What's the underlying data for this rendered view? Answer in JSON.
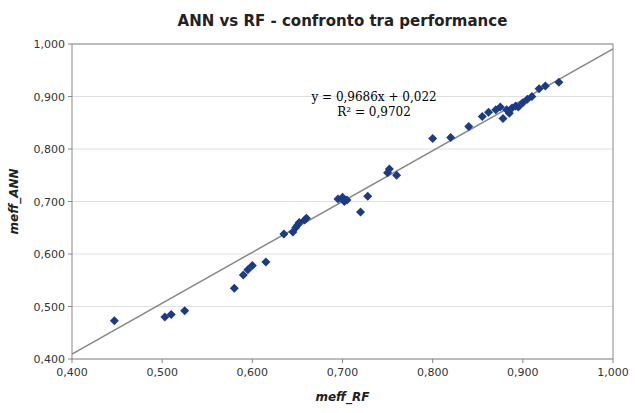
{
  "chart_data": {
    "type": "scatter",
    "title": "ANN vs RF - confronto tra performance",
    "x_label": "meff_RF",
    "y_label": "meff_ANN",
    "xlim": [
      0.4,
      1.0
    ],
    "ylim": [
      0.4,
      1.0
    ],
    "xticks": [
      {
        "value": 0.4,
        "label": "0,400"
      },
      {
        "value": 0.5,
        "label": "0,500"
      },
      {
        "value": 0.6,
        "label": "0,600"
      },
      {
        "value": 0.7,
        "label": "0,700"
      },
      {
        "value": 0.8,
        "label": "0,800"
      },
      {
        "value": 0.9,
        "label": "0,900"
      },
      {
        "value": 1.0,
        "label": "1,000"
      }
    ],
    "yticks": [
      {
        "value": 0.4,
        "label": "0,400"
      },
      {
        "value": 0.5,
        "label": "0,500"
      },
      {
        "value": 0.6,
        "label": "0,600"
      },
      {
        "value": 0.7,
        "label": "0,700"
      },
      {
        "value": 0.8,
        "label": "0,800"
      },
      {
        "value": 0.9,
        "label": "0,900"
      },
      {
        "value": 1.0,
        "label": "1,000"
      }
    ],
    "grid": "y",
    "series": [
      {
        "type": "scatter",
        "color": "#1a3a8a",
        "marker": "diamond",
        "x": [
          0.447,
          0.503,
          0.51,
          0.525,
          0.58,
          0.59,
          0.595,
          0.6,
          0.615,
          0.635,
          0.645,
          0.648,
          0.65,
          0.652,
          0.658,
          0.66,
          0.695,
          0.7,
          0.702,
          0.705,
          0.72,
          0.728,
          0.75,
          0.752,
          0.76,
          0.8,
          0.82,
          0.84,
          0.855,
          0.862,
          0.87,
          0.875,
          0.878,
          0.882,
          0.885,
          0.888,
          0.892,
          0.895,
          0.9,
          0.905,
          0.91,
          0.918,
          0.925,
          0.94
        ],
        "values": [
          0.473,
          0.48,
          0.485,
          0.492,
          0.535,
          0.56,
          0.57,
          0.578,
          0.585,
          0.638,
          0.642,
          0.65,
          0.655,
          0.66,
          0.665,
          0.668,
          0.705,
          0.708,
          0.7,
          0.703,
          0.68,
          0.71,
          0.755,
          0.762,
          0.75,
          0.82,
          0.822,
          0.843,
          0.862,
          0.87,
          0.875,
          0.88,
          0.858,
          0.875,
          0.868,
          0.878,
          0.882,
          0.88,
          0.888,
          0.895,
          0.9,
          0.915,
          0.92,
          0.927
        ]
      },
      {
        "type": "line",
        "color": "#888888",
        "line_style": "solid",
        "x": [
          0.4,
          1.0
        ],
        "values": [
          0.40944,
          0.9906
        ]
      }
    ],
    "annotations": [
      {
        "lines": [
          "y = 0,9686x + 0,022",
          "R² = 0,9702"
        ],
        "x": 0.735,
        "y": 0.885
      }
    ]
  }
}
